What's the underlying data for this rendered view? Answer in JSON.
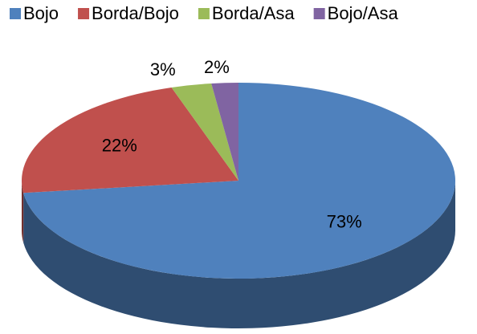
{
  "chart_data": {
    "type": "pie",
    "categories": [
      "Bojo",
      "Borda/Bojo",
      "Borda/Asa",
      "Bojo/Asa"
    ],
    "values": [
      73,
      22,
      3,
      2
    ],
    "value_labels": [
      "73%",
      "22%",
      "3%",
      "2%"
    ],
    "colors": [
      "#4f81bd",
      "#c0504d",
      "#9bbb59",
      "#8064a2"
    ],
    "legend": "top"
  }
}
